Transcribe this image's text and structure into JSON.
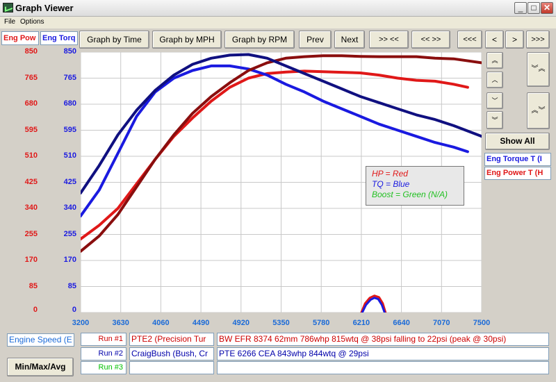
{
  "window": {
    "title": "Graph Viewer"
  },
  "menu": {
    "file": "File",
    "options": "Options"
  },
  "toolbar": {
    "graph_by_time": "Graph by Time",
    "graph_by_mph": "Graph by MPH",
    "graph_by_rpm": "Graph by RPM",
    "prev": "Prev",
    "next": "Next",
    "zoom_in_x": ">> <<",
    "zoom_out_x": "<< >>",
    "scroll_far_left": "<<<",
    "scroll_left": "<",
    "scroll_right": ">",
    "scroll_far_right": ">>>"
  },
  "side_buttons": {
    "show_all": "Show All"
  },
  "axis_headers": {
    "left": "Eng Pow",
    "right": "Eng Torq"
  },
  "y_ticks": [
    "850",
    "765",
    "680",
    "595",
    "510",
    "425",
    "340",
    "255",
    "170",
    "85",
    "0"
  ],
  "x_ticks": [
    "3200",
    "3630",
    "4060",
    "4490",
    "4920",
    "5350",
    "5780",
    "6210",
    "6640",
    "7070",
    "7500"
  ],
  "channels": [
    "Eng Torque T (I",
    "Eng Power T (H"
  ],
  "legend": {
    "hp": "HP = Red",
    "tq": "TQ = Blue",
    "boost": "Boost = Green (N/A)"
  },
  "bottom": {
    "x_channel": "Engine Speed (E",
    "min_max_avg": "Min/Max/Avg",
    "runs": [
      {
        "label": "Run #1",
        "name": "PTE2 (Precision Tur",
        "desc": "BW EFR 8374 62mm 786whp 815wtq @ 38psi falling to 22psi (peak @ 30psi)",
        "color": "#cc0000"
      },
      {
        "label": "Run #2",
        "name": "CraigBush (Bush, Cr",
        "desc": "PTE 6266 CEA 843whp 844wtq @ 29psi",
        "color": "#0000aa"
      },
      {
        "label": "Run #3",
        "name": "",
        "desc": "",
        "color": "#00c000"
      }
    ]
  },
  "colors": {
    "hp": "#e01818",
    "tq": "#1a1ae0",
    "hp_dark": "#8a0e0e",
    "tq_dark": "#101080",
    "boost": "#20c020",
    "x_axis": "#1a6ad8"
  },
  "chart_data": {
    "type": "line",
    "xlabel": "",
    "ylabel": "",
    "xlim": [
      3200,
      7500
    ],
    "ylim": [
      0,
      850
    ],
    "series": [
      {
        "name": "Run #1",
        "color": "#e01818",
        "x": [
          3200,
          3400,
          3600,
          3800,
          4000,
          4200,
          4400,
          4600,
          4800,
          5000,
          5200,
          5400,
          5600,
          5800,
          6000,
          6200,
          6400,
          6600,
          6800,
          7000,
          7200,
          7350
        ],
        "y": [
          240,
          285,
          340,
          420,
          500,
          575,
          635,
          690,
          735,
          765,
          780,
          785,
          788,
          786,
          784,
          782,
          775,
          765,
          758,
          755,
          745,
          735
        ]
      },
      {
        "name": "Run #1",
        "color": "#1a1ae0",
        "x": [
          3200,
          3400,
          3600,
          3800,
          4000,
          4200,
          4400,
          4600,
          4800,
          5000,
          5200,
          5400,
          5600,
          5800,
          6000,
          6200,
          6400,
          6600,
          6800,
          7000,
          7200,
          7350
        ],
        "y": [
          315,
          400,
          520,
          640,
          720,
          765,
          790,
          805,
          805,
          795,
          775,
          745,
          720,
          690,
          665,
          640,
          615,
          595,
          575,
          555,
          540,
          525
        ]
      },
      {
        "name": "Run #2",
        "color": "#8a0e0e",
        "x": [
          3200,
          3400,
          3600,
          3800,
          4000,
          4200,
          4400,
          4600,
          4800,
          5000,
          5200,
          5400,
          5600,
          5800,
          6000,
          6200,
          6400,
          6600,
          6800,
          7000,
          7200,
          7500
        ],
        "y": [
          200,
          250,
          320,
          410,
          500,
          580,
          650,
          705,
          750,
          790,
          815,
          830,
          835,
          838,
          838,
          836,
          835,
          835,
          835,
          830,
          828,
          815
        ]
      },
      {
        "name": "Run #2",
        "color": "#101080",
        "x": [
          3200,
          3400,
          3600,
          3800,
          4000,
          4200,
          4400,
          4600,
          4800,
          5000,
          5200,
          5400,
          5600,
          5800,
          6000,
          6200,
          6400,
          6600,
          6800,
          7000,
          7200,
          7500
        ],
        "y": [
          390,
          480,
          580,
          660,
          725,
          775,
          810,
          830,
          840,
          842,
          830,
          805,
          780,
          755,
          730,
          705,
          685,
          665,
          645,
          630,
          610,
          575
        ]
      },
      {
        "name": "Run #1",
        "color": "#e01818",
        "x": [
          6210,
          6250,
          6300,
          6350,
          6400,
          6440,
          6470
        ],
        "y": [
          0,
          30,
          48,
          55,
          50,
          30,
          0
        ]
      },
      {
        "name": "Run #1",
        "color": "#1a1ae0",
        "x": [
          6220,
          6260,
          6310,
          6350,
          6390,
          6430,
          6460
        ],
        "y": [
          0,
          25,
          42,
          48,
          44,
          25,
          0
        ]
      }
    ]
  }
}
